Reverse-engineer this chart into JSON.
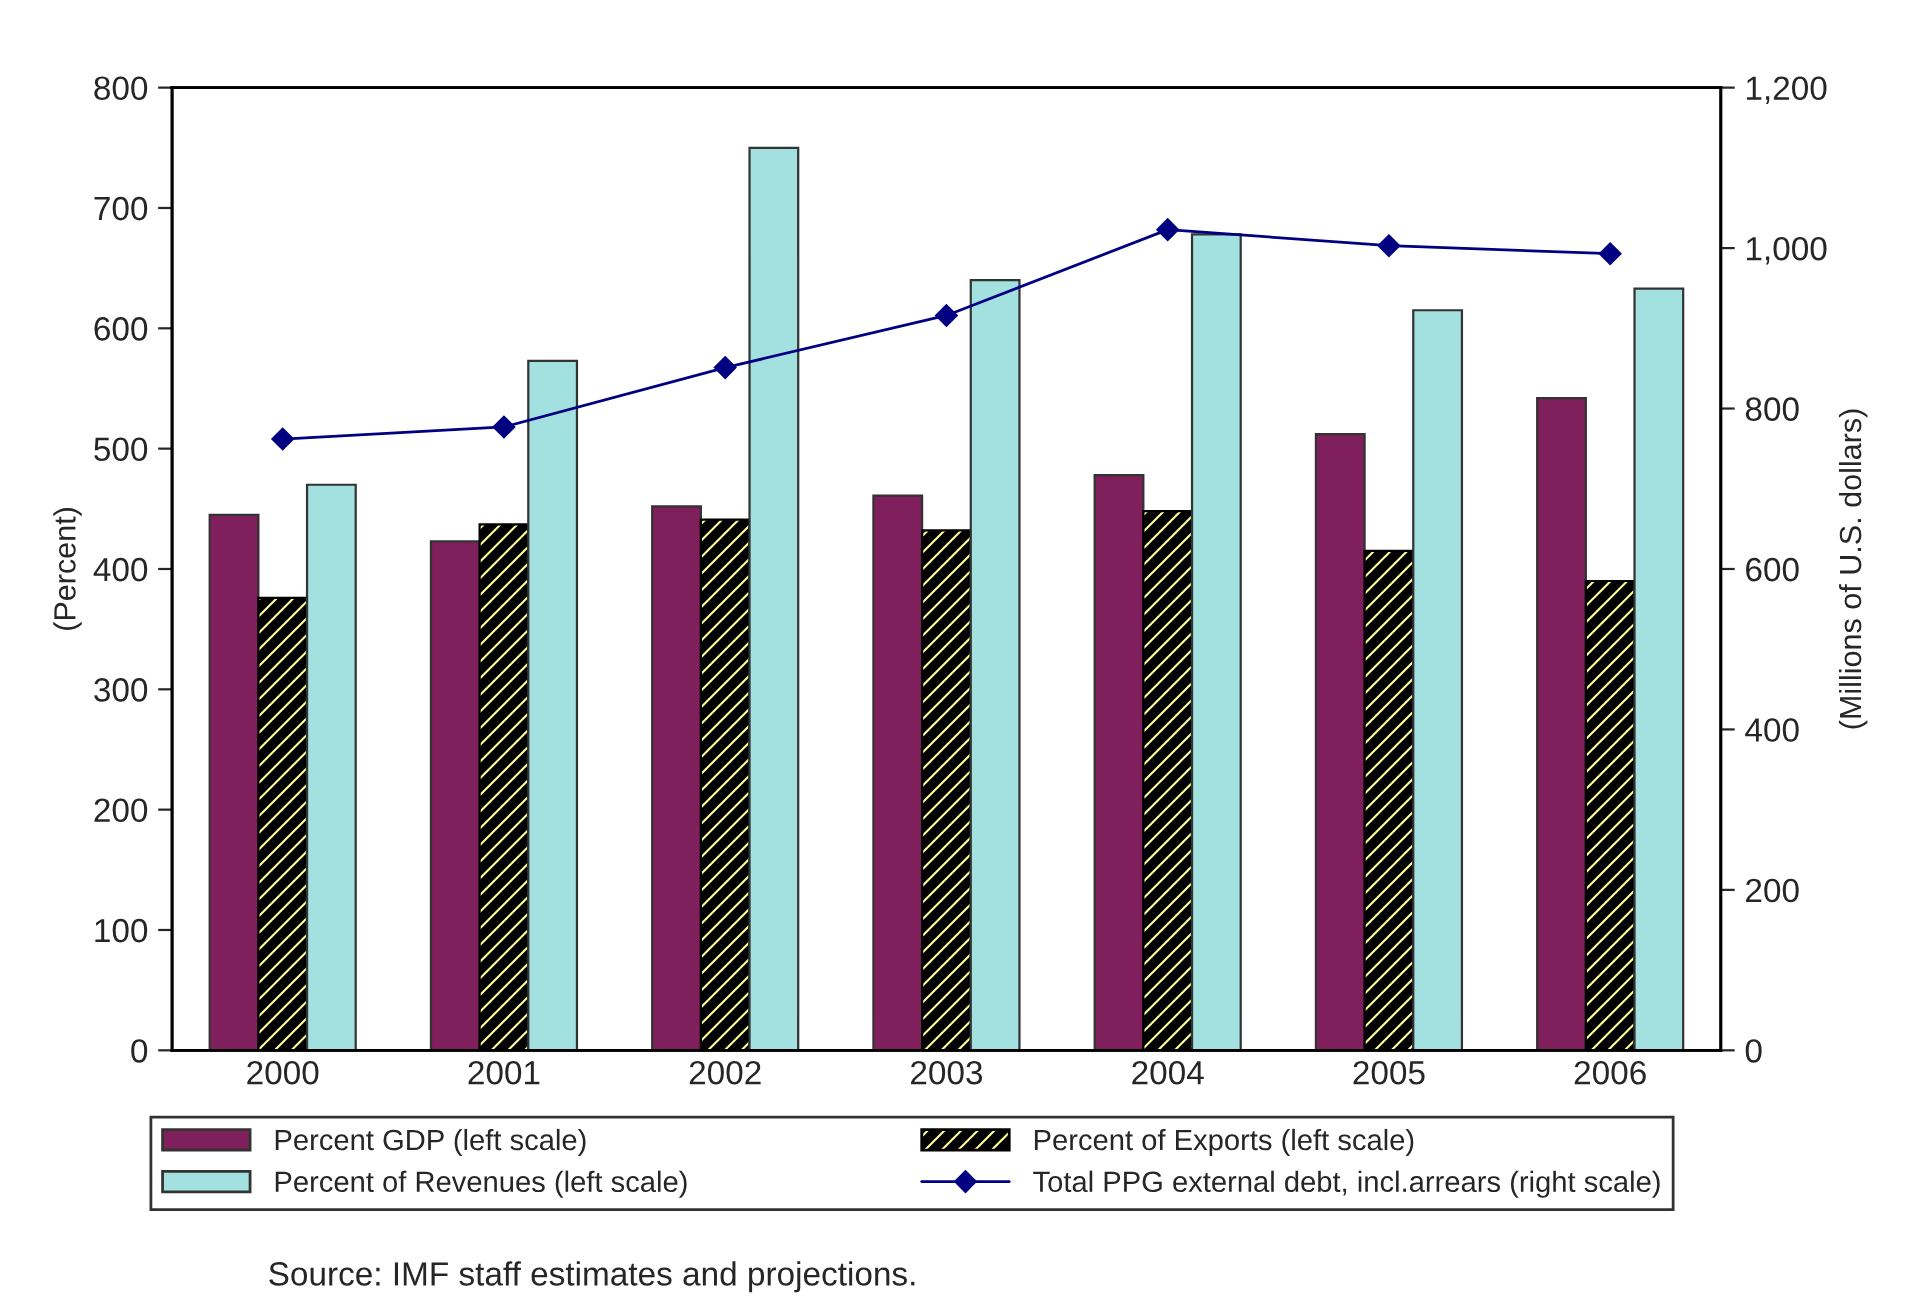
{
  "chart_data": {
    "type": "bar",
    "categories": [
      "2000",
      "2001",
      "2002",
      "2003",
      "2004",
      "2005",
      "2006"
    ],
    "ylabel": "(Percent)",
    "y2label": "(Millions of U.S. dollars)",
    "ylim": [
      0,
      800
    ],
    "yticks": [
      0,
      100,
      200,
      300,
      400,
      500,
      600,
      700,
      800
    ],
    "y2lim": [
      0,
      1200
    ],
    "y2ticks": [
      0,
      {
        "value": 200,
        "label": "200"
      },
      {
        "value": 400,
        "label": "400"
      },
      {
        "value": 600,
        "label": "600"
      },
      {
        "value": 800,
        "label": "800"
      },
      {
        "value": 1000,
        "label": "1,000"
      },
      {
        "value": 1200,
        "label": "1,200"
      }
    ],
    "series": [
      {
        "name": "Percent GDP (left scale)",
        "color": "#7f1f5c",
        "values": [
          445,
          423,
          452,
          461,
          478,
          512,
          542
        ]
      },
      {
        "name": "Percent of Exports (left scale)",
        "color": "#000000",
        "values": [
          376,
          437,
          441,
          432,
          448,
          415,
          390
        ]
      },
      {
        "name": "Percent of Revenues (left scale)",
        "color": "#a3e0e0",
        "values": [
          470,
          573,
          750,
          640,
          678,
          615,
          633
        ]
      },
      {
        "name": "Total PPG external debt, incl.arrears (right scale)",
        "type": "line",
        "axis": "y2",
        "marker": "diamond",
        "color": "#000080",
        "values": [
          762,
          777,
          851,
          916,
          1023,
          1003,
          993
        ]
      }
    ],
    "legend": "bottom",
    "grid": false,
    "annotations": [
      "Source: IMF staff estimates and projections."
    ]
  }
}
